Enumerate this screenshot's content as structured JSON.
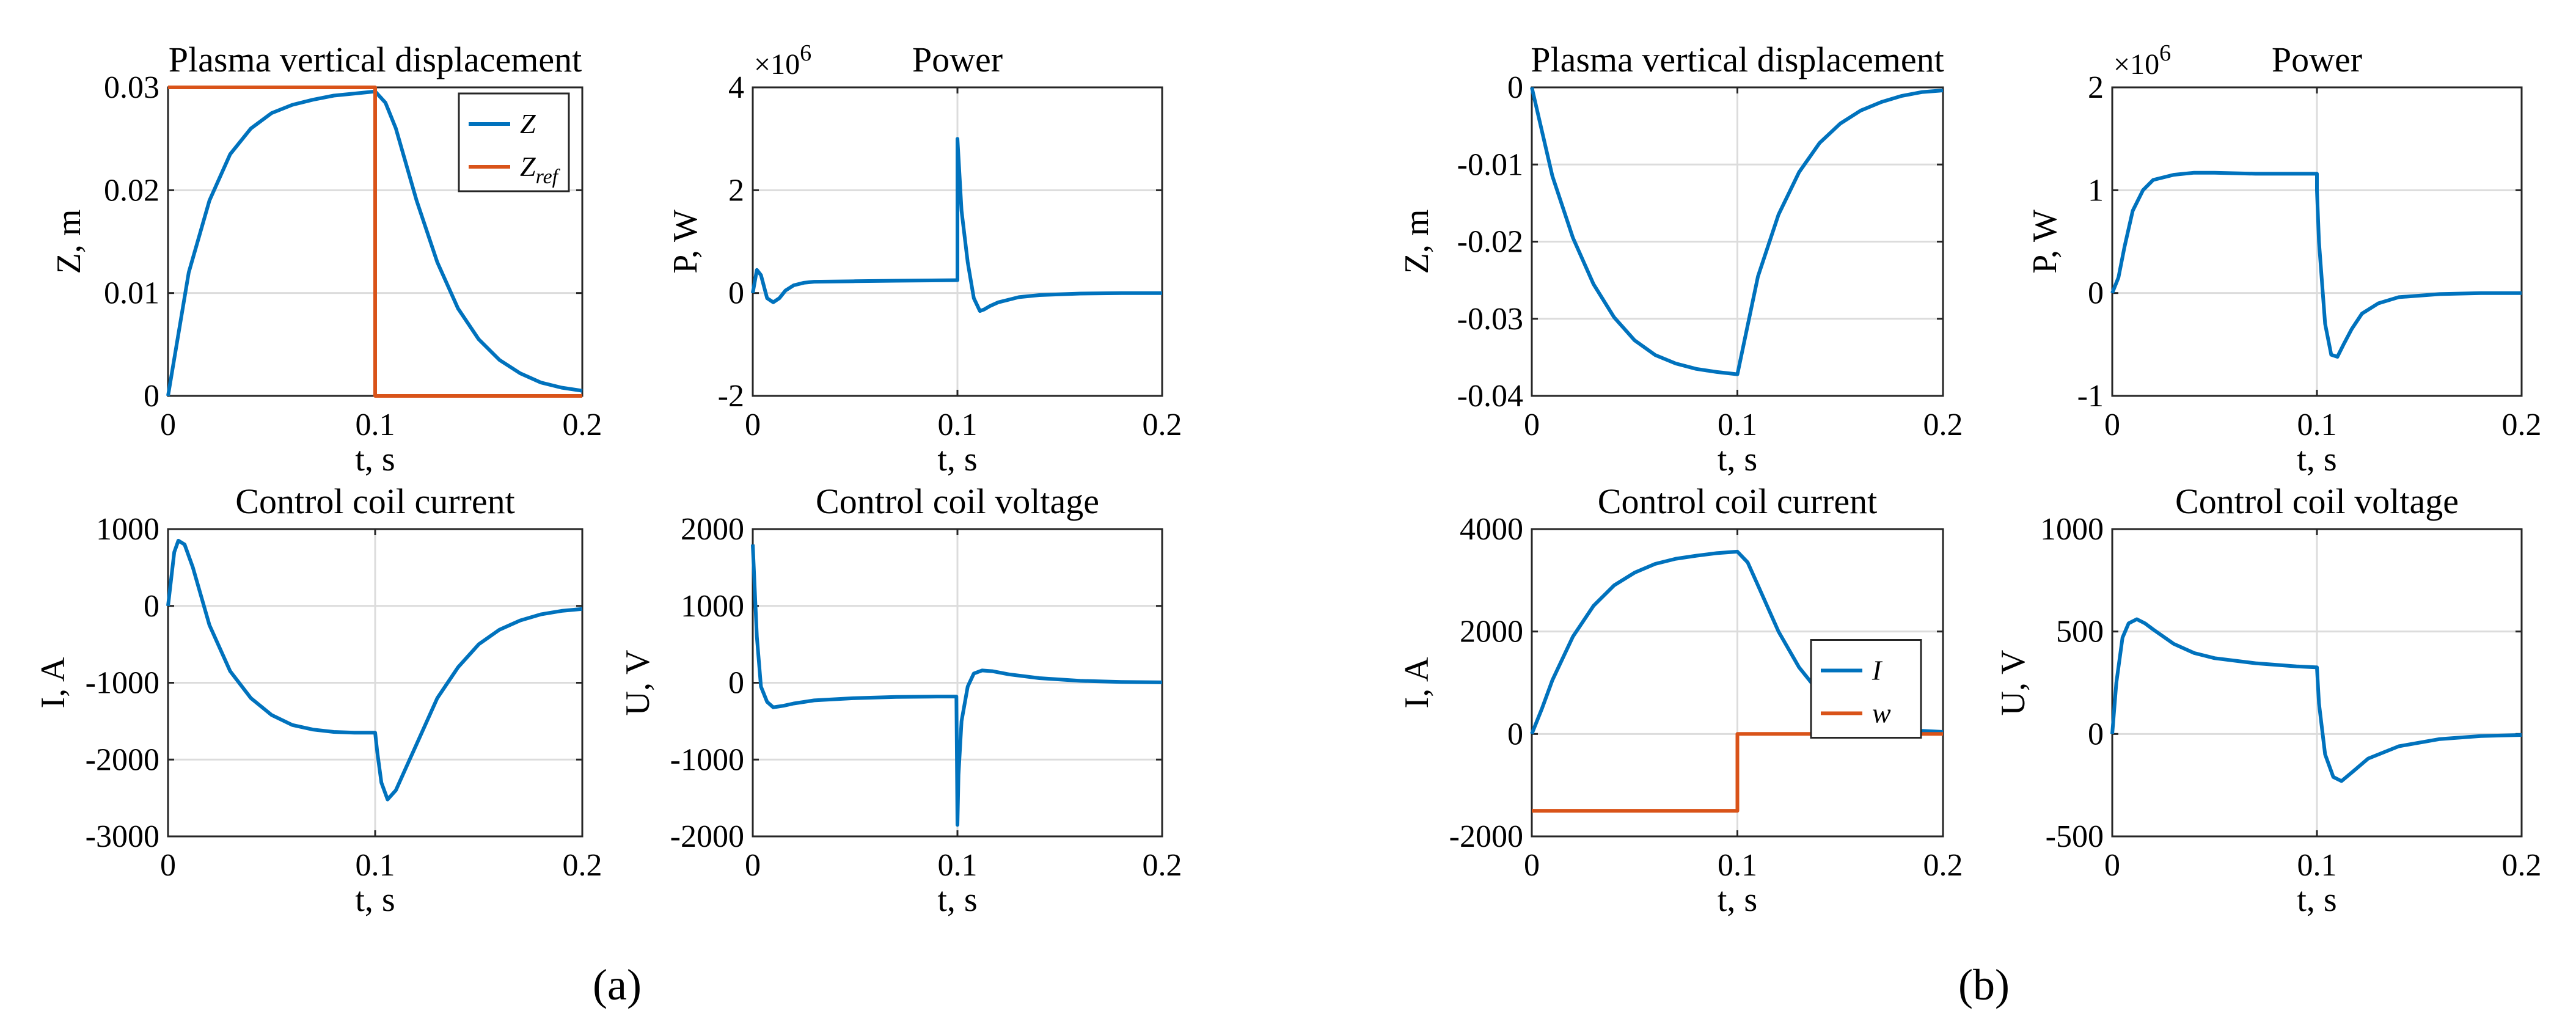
{
  "figure": {
    "captions": [
      "(a)",
      "(b)"
    ],
    "colors": {
      "series1": "#0072BD",
      "series2": "#D95319"
    }
  },
  "chart_data": [
    {
      "type": "line",
      "group": "a",
      "title": "Plasma vertical displacement",
      "xlabel": "t, s",
      "ylabel": "Z, m",
      "xlim": [
        0,
        0.2
      ],
      "ylim": [
        0,
        0.03
      ],
      "xticks": [
        "0",
        "0.1",
        "0.2"
      ],
      "yticks": [
        "0",
        "0.01",
        "0.02",
        "0.03"
      ],
      "multiplier": "",
      "legend": {
        "position": "top-right",
        "entries": [
          "Z",
          "Z_ref"
        ]
      },
      "series": [
        {
          "name": "Z",
          "x": [
            0,
            0.01,
            0.02,
            0.03,
            0.04,
            0.05,
            0.06,
            0.07,
            0.08,
            0.09,
            0.1,
            0.105,
            0.11,
            0.12,
            0.13,
            0.14,
            0.15,
            0.16,
            0.17,
            0.18,
            0.19,
            0.2
          ],
          "y": [
            0,
            0.012,
            0.019,
            0.0235,
            0.026,
            0.0275,
            0.0283,
            0.0288,
            0.0292,
            0.0294,
            0.0296,
            0.0285,
            0.026,
            0.019,
            0.013,
            0.0085,
            0.0055,
            0.0035,
            0.0022,
            0.0013,
            0.0008,
            0.0005
          ]
        },
        {
          "name": "Z_ref",
          "x": [
            0,
            0.1,
            0.1,
            0.2
          ],
          "y": [
            0.03,
            0.03,
            0,
            0
          ]
        }
      ]
    },
    {
      "type": "line",
      "group": "a",
      "title": "Power",
      "xlabel": "t, s",
      "ylabel": "P, W",
      "xlim": [
        0,
        0.2
      ],
      "ylim": [
        -2,
        4
      ],
      "xticks": [
        "0",
        "0.1",
        "0.2"
      ],
      "yticks": [
        "-2",
        "0",
        "2",
        "4"
      ],
      "multiplier": "×10^6",
      "series": [
        {
          "name": "P",
          "x": [
            0,
            0.002,
            0.004,
            0.007,
            0.01,
            0.013,
            0.016,
            0.02,
            0.025,
            0.03,
            0.05,
            0.07,
            0.099,
            0.1,
            0.1,
            0.102,
            0.105,
            0.108,
            0.111,
            0.113,
            0.116,
            0.12,
            0.13,
            0.14,
            0.16,
            0.18,
            0.2
          ],
          "y": [
            0,
            0.45,
            0.35,
            -0.1,
            -0.18,
            -0.1,
            0.05,
            0.15,
            0.2,
            0.22,
            0.23,
            0.24,
            0.25,
            0.25,
            3.0,
            1.6,
            0.6,
            -0.1,
            -0.35,
            -0.32,
            -0.25,
            -0.18,
            -0.08,
            -0.04,
            -0.01,
            0,
            0
          ]
        }
      ]
    },
    {
      "type": "line",
      "group": "a",
      "title": "Control coil current",
      "xlabel": "t, s",
      "ylabel": "I, A",
      "xlim": [
        0,
        0.2
      ],
      "ylim": [
        -3000,
        1000
      ],
      "xticks": [
        "0",
        "0.1",
        "0.2"
      ],
      "yticks": [
        "-3000",
        "-2000",
        "-1000",
        "0",
        "1000"
      ],
      "multiplier": "",
      "series": [
        {
          "name": "I",
          "x": [
            0,
            0.003,
            0.005,
            0.008,
            0.012,
            0.02,
            0.03,
            0.04,
            0.05,
            0.06,
            0.07,
            0.08,
            0.09,
            0.1,
            0.101,
            0.103,
            0.106,
            0.11,
            0.115,
            0.12,
            0.13,
            0.14,
            0.15,
            0.16,
            0.17,
            0.18,
            0.19,
            0.2
          ],
          "y": [
            0,
            700,
            850,
            800,
            500,
            -250,
            -850,
            -1200,
            -1420,
            -1550,
            -1610,
            -1640,
            -1650,
            -1650,
            -1900,
            -2300,
            -2520,
            -2400,
            -2100,
            -1800,
            -1200,
            -800,
            -500,
            -310,
            -190,
            -110,
            -65,
            -40
          ]
        }
      ]
    },
    {
      "type": "line",
      "group": "a",
      "title": "Control coil voltage",
      "xlabel": "t, s",
      "ylabel": "U, V",
      "xlim": [
        0,
        0.2
      ],
      "ylim": [
        -2000,
        2000
      ],
      "xticks": [
        "0",
        "0.1",
        "0.2"
      ],
      "yticks": [
        "-2000",
        "-1000",
        "0",
        "1000",
        "2000"
      ],
      "multiplier": "",
      "series": [
        {
          "name": "U",
          "x": [
            0,
            0.002,
            0.004,
            0.007,
            0.01,
            0.015,
            0.02,
            0.03,
            0.05,
            0.07,
            0.09,
            0.0995,
            0.1,
            0.1005,
            0.102,
            0.105,
            0.108,
            0.112,
            0.117,
            0.125,
            0.14,
            0.16,
            0.18,
            0.2
          ],
          "y": [
            1800,
            600,
            -50,
            -250,
            -320,
            -300,
            -270,
            -230,
            -200,
            -185,
            -180,
            -180,
            -1850,
            -1200,
            -500,
            -50,
            120,
            160,
            150,
            110,
            60,
            25,
            10,
            5
          ]
        }
      ]
    },
    {
      "type": "line",
      "group": "b",
      "title": "Plasma vertical displacement",
      "xlabel": "t, s",
      "ylabel": "Z, m",
      "xlim": [
        0,
        0.2
      ],
      "ylim": [
        -0.04,
        0
      ],
      "xticks": [
        "0",
        "0.1",
        "0.2"
      ],
      "yticks": [
        "-0.04",
        "-0.03",
        "-0.02",
        "-0.01",
        "0"
      ],
      "multiplier": "",
      "series": [
        {
          "name": "Z",
          "x": [
            0,
            0.01,
            0.02,
            0.03,
            0.04,
            0.05,
            0.06,
            0.07,
            0.08,
            0.09,
            0.1,
            0.11,
            0.12,
            0.13,
            0.14,
            0.15,
            0.16,
            0.17,
            0.18,
            0.19,
            0.2
          ],
          "y": [
            0,
            -0.0115,
            -0.0195,
            -0.0255,
            -0.0298,
            -0.0328,
            -0.0347,
            -0.0358,
            -0.0365,
            -0.0369,
            -0.0372,
            -0.0245,
            -0.0165,
            -0.011,
            -0.0072,
            -0.0047,
            -0.003,
            -0.0019,
            -0.0011,
            -0.0006,
            -0.0004
          ]
        }
      ]
    },
    {
      "type": "line",
      "group": "b",
      "title": "Power",
      "xlabel": "t, s",
      "ylabel": "P, W",
      "xlim": [
        0,
        0.2
      ],
      "ylim": [
        -1,
        2
      ],
      "xticks": [
        "0",
        "0.1",
        "0.2"
      ],
      "yticks": [
        "-1",
        "0",
        "1",
        "2"
      ],
      "multiplier": "×10^6",
      "series": [
        {
          "name": "P",
          "x": [
            0,
            0.003,
            0.006,
            0.01,
            0.015,
            0.02,
            0.03,
            0.04,
            0.05,
            0.07,
            0.099,
            0.1,
            0.1,
            0.101,
            0.104,
            0.107,
            0.11,
            0.113,
            0.117,
            0.122,
            0.13,
            0.14,
            0.16,
            0.18,
            0.2
          ],
          "y": [
            0,
            0.15,
            0.45,
            0.8,
            1.0,
            1.1,
            1.15,
            1.17,
            1.17,
            1.16,
            1.16,
            1.16,
            1.0,
            0.5,
            -0.3,
            -0.6,
            -0.62,
            -0.5,
            -0.35,
            -0.2,
            -0.1,
            -0.04,
            -0.01,
            0,
            0
          ]
        }
      ]
    },
    {
      "type": "line",
      "group": "b",
      "title": "Control coil current",
      "xlabel": "t, s",
      "ylabel": "I, A",
      "xlim": [
        0,
        0.2
      ],
      "ylim": [
        -2000,
        4000
      ],
      "xticks": [
        "0",
        "0.1",
        "0.2"
      ],
      "yticks": [
        "-2000",
        "0",
        "2000",
        "4000"
      ],
      "multiplier": "",
      "legend": {
        "position": "center-right",
        "entries": [
          "I",
          "w"
        ]
      },
      "series": [
        {
          "name": "I",
          "x": [
            0,
            0.005,
            0.01,
            0.02,
            0.03,
            0.04,
            0.05,
            0.06,
            0.07,
            0.08,
            0.09,
            0.1,
            0.105,
            0.11,
            0.12,
            0.13,
            0.14,
            0.15,
            0.16,
            0.17,
            0.18,
            0.19,
            0.2
          ],
          "y": [
            0,
            500,
            1050,
            1900,
            2500,
            2900,
            3150,
            3320,
            3420,
            3480,
            3530,
            3560,
            3350,
            2900,
            2000,
            1300,
            800,
            500,
            300,
            180,
            100,
            60,
            40
          ]
        },
        {
          "name": "w",
          "x": [
            0,
            0.1,
            0.1,
            0.2
          ],
          "y": [
            -1500,
            -1500,
            0,
            0
          ]
        }
      ]
    },
    {
      "type": "line",
      "group": "b",
      "title": "Control coil voltage",
      "xlabel": "t, s",
      "ylabel": "U, V",
      "xlim": [
        0,
        0.2
      ],
      "ylim": [
        -500,
        1000
      ],
      "xticks": [
        "0",
        "0.1",
        "0.2"
      ],
      "yticks": [
        "-500",
        "0",
        "500",
        "1000"
      ],
      "multiplier": "",
      "series": [
        {
          "name": "U",
          "x": [
            0,
            0.002,
            0.005,
            0.008,
            0.012,
            0.016,
            0.02,
            0.03,
            0.04,
            0.05,
            0.07,
            0.09,
            0.0995,
            0.1,
            0.101,
            0.104,
            0.108,
            0.112,
            0.118,
            0.125,
            0.14,
            0.16,
            0.18,
            0.2
          ],
          "y": [
            0,
            250,
            470,
            540,
            560,
            540,
            510,
            440,
            395,
            370,
            345,
            330,
            325,
            325,
            150,
            -100,
            -210,
            -230,
            -180,
            -120,
            -60,
            -25,
            -10,
            -5
          ]
        }
      ]
    }
  ]
}
